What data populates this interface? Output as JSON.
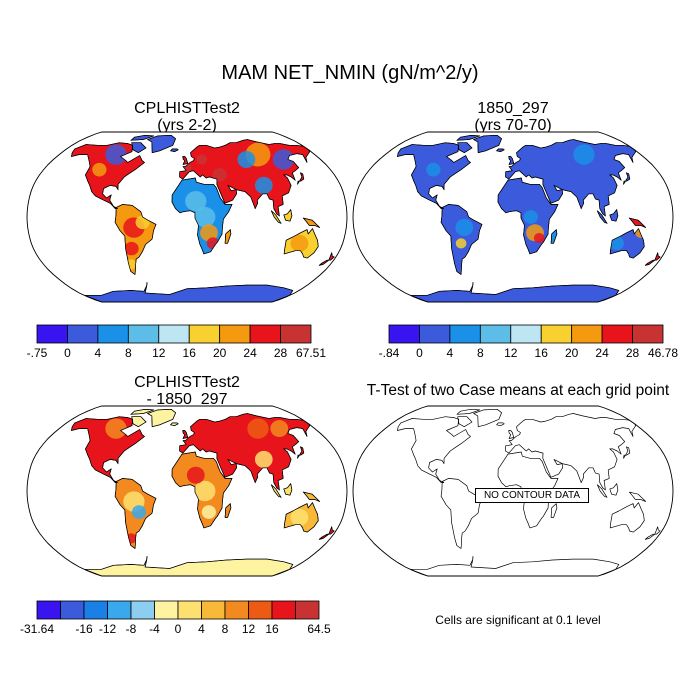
{
  "figure": {
    "title": "MAM NET_NMIN (gN/m^2/y)",
    "panels": [
      {
        "id": "p1",
        "line1": "CPLHISTTest2",
        "line2": "(yrs 2-2)"
      },
      {
        "id": "p2",
        "line1": "1850_297",
        "line2": "(yrs 70-70)"
      },
      {
        "id": "p3",
        "line1": "CPLHISTTest2",
        "line2": "- 1850_297"
      },
      {
        "id": "p4",
        "line1": "T-Test of two Case means at each grid point",
        "line2": ""
      }
    ],
    "no_data_label": "NO CONTOUR DATA",
    "significance_note": "Cells are significant at 0.1 level"
  },
  "chart_data": [
    {
      "type": "heatmap",
      "map_projection": "Robinson",
      "title": "CPLHISTTest2 (yrs 2-2)",
      "variable": "NET_NMIN",
      "units": "gN/m^2/y",
      "colorbar": {
        "levels": [
          "-.75",
          "0",
          "4",
          "8",
          "12",
          "16",
          "20",
          "24",
          "28",
          "67.51"
        ],
        "colors": [
          "#3a14f0",
          "#3c5bdc",
          "#1a90e8",
          "#5cbde8",
          "#bde6f2",
          "#f8d030",
          "#f59a10",
          "#e8141c",
          "#c83232"
        ]
      }
    },
    {
      "type": "heatmap",
      "map_projection": "Robinson",
      "title": "1850_297 (yrs 70-70)",
      "variable": "NET_NMIN",
      "units": "gN/m^2/y",
      "colorbar": {
        "levels": [
          "-.84",
          "0",
          "4",
          "8",
          "12",
          "16",
          "20",
          "24",
          "28",
          "46.78"
        ],
        "colors": [
          "#3a14f0",
          "#3c5bdc",
          "#1a90e8",
          "#5cbde8",
          "#bde6f2",
          "#f8d030",
          "#f59a10",
          "#e8141c",
          "#c83232"
        ]
      }
    },
    {
      "type": "heatmap",
      "map_projection": "Robinson",
      "title": "CPLHISTTest2 - 1850_297",
      "variable": "NET_NMIN difference",
      "units": "gN/m^2/y",
      "colorbar": {
        "levels": [
          "-31.64",
          "",
          "-16",
          "-12",
          "-8",
          "-4",
          "0",
          "4",
          "8",
          "12",
          "16",
          "",
          "64.5"
        ],
        "colors": [
          "#3a14f0",
          "#3c5bdc",
          "#1a80e8",
          "#3aa8ec",
          "#8ccdf0",
          "#fef3a0",
          "#fde070",
          "#f8b838",
          "#f28a20",
          "#ec5a14",
          "#e8141c",
          "#c83232"
        ]
      }
    },
    {
      "type": "heatmap",
      "map_projection": "Robinson",
      "title": "T-Test of two Case means at each grid point",
      "status": "NO CONTOUR DATA",
      "significance_level": 0.1
    }
  ]
}
